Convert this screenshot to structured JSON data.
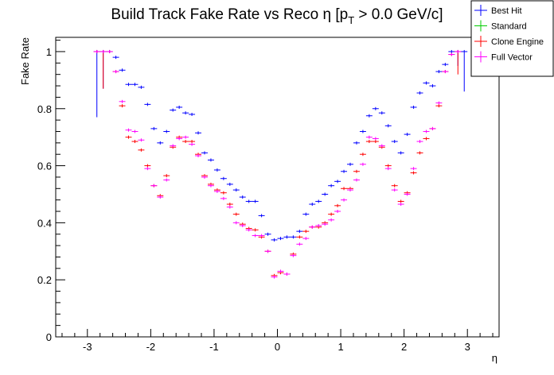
{
  "chart_data": {
    "type": "scatter",
    "title": "Build Track Fake Rate vs Reco η [p",
    "title_sub": "T",
    "title_tail": " > 0.0 GeV/c]",
    "xlabel": "η",
    "ylabel": "Fake Rate",
    "xlim": [
      -3.5,
      3.5
    ],
    "ylim": [
      0,
      1.05
    ],
    "xticks": [
      -3,
      -2,
      -1,
      0,
      1,
      2,
      3
    ],
    "xtick_labels": [
      "-3",
      "-2",
      "-1",
      "0",
      "1",
      "2",
      "3"
    ],
    "yticks": [
      0,
      0.2,
      0.4,
      0.6,
      0.8,
      1
    ],
    "ytick_labels": [
      "0",
      "0.2",
      "0.4",
      "0.6",
      "0.8",
      "1"
    ],
    "bin_half_width": 0.05,
    "legend_position": "top-right",
    "series": [
      {
        "name": "Best Hit",
        "color": "#0000ff",
        "x": [
          -2.85,
          -2.75,
          -2.65,
          -2.55,
          -2.45,
          -2.35,
          -2.25,
          -2.15,
          -2.05,
          -1.95,
          -1.85,
          -1.75,
          -1.65,
          -1.55,
          -1.45,
          -1.35,
          -1.25,
          -1.15,
          -1.05,
          -0.95,
          -0.85,
          -0.75,
          -0.65,
          -0.55,
          -0.45,
          -0.35,
          -0.25,
          -0.15,
          -0.05,
          0.05,
          0.15,
          0.25,
          0.35,
          0.45,
          0.55,
          0.65,
          0.75,
          0.85,
          0.95,
          1.05,
          1.15,
          1.25,
          1.35,
          1.45,
          1.55,
          1.65,
          1.75,
          1.85,
          1.95,
          2.05,
          2.15,
          2.25,
          2.35,
          2.45,
          2.55,
          2.65,
          2.75,
          2.85,
          2.95
        ],
        "y": [
          1.0,
          1.0,
          1.0,
          0.98,
          0.935,
          0.885,
          0.885,
          0.875,
          0.815,
          0.73,
          0.68,
          0.72,
          0.795,
          0.805,
          0.785,
          0.78,
          0.715,
          0.645,
          0.62,
          0.585,
          0.555,
          0.535,
          0.515,
          0.49,
          0.475,
          0.475,
          0.425,
          0.36,
          0.34,
          0.345,
          0.35,
          0.35,
          0.37,
          0.43,
          0.465,
          0.475,
          0.5,
          0.53,
          0.545,
          0.58,
          0.605,
          0.68,
          0.72,
          0.775,
          0.8,
          0.785,
          0.74,
          0.685,
          0.645,
          0.71,
          0.805,
          0.855,
          0.89,
          0.88,
          0.93,
          0.955,
          1.0,
          1.0,
          1.0
        ],
        "err_low": [
          0.23,
          0.13,
          0,
          0,
          0,
          0,
          0,
          0,
          0,
          0,
          0,
          0,
          0,
          0,
          0,
          0,
          0,
          0,
          0,
          0,
          0,
          0,
          0,
          0,
          0,
          0,
          0,
          0,
          0,
          0,
          0,
          0,
          0,
          0,
          0,
          0,
          0,
          0,
          0,
          0,
          0,
          0,
          0,
          0,
          0,
          0,
          0,
          0,
          0,
          0,
          0,
          0,
          0,
          0,
          0,
          0,
          0,
          0.05,
          0.14
        ]
      },
      {
        "name": "Standard",
        "color": "#00cc00",
        "x": [],
        "y": [],
        "err_low": []
      },
      {
        "name": "Clone Engine",
        "color": "#ff0000",
        "x": [
          -2.85,
          -2.75,
          -2.65,
          -2.55,
          -2.45,
          -2.35,
          -2.25,
          -2.15,
          -2.05,
          -1.95,
          -1.85,
          -1.75,
          -1.65,
          -1.55,
          -1.45,
          -1.35,
          -1.25,
          -1.15,
          -1.05,
          -0.95,
          -0.85,
          -0.75,
          -0.65,
          -0.55,
          -0.45,
          -0.35,
          -0.25,
          -0.15,
          -0.05,
          0.05,
          0.15,
          0.25,
          0.35,
          0.45,
          0.55,
          0.65,
          0.75,
          0.85,
          0.95,
          1.05,
          1.15,
          1.25,
          1.35,
          1.45,
          1.55,
          1.65,
          1.75,
          1.85,
          1.95,
          2.05,
          2.15,
          2.25,
          2.35,
          2.45,
          2.55,
          2.65,
          2.75,
          2.85
        ],
        "y": [
          1.0,
          1.0,
          1.0,
          0.93,
          0.81,
          0.7,
          0.685,
          0.655,
          0.6,
          0.53,
          0.495,
          0.565,
          0.665,
          0.7,
          0.685,
          0.685,
          0.64,
          0.565,
          0.535,
          0.515,
          0.505,
          0.465,
          0.43,
          0.395,
          0.38,
          0.375,
          0.35,
          0.3,
          0.215,
          0.225,
          0.22,
          0.29,
          0.35,
          0.37,
          0.385,
          0.385,
          0.4,
          0.43,
          0.46,
          0.52,
          0.52,
          0.58,
          0.64,
          0.685,
          0.685,
          0.665,
          0.6,
          0.53,
          0.475,
          0.505,
          0.575,
          0.645,
          0.695,
          0.73,
          0.81,
          0.93,
          0.99,
          1.0
        ],
        "err_low": [
          0,
          0.13,
          0,
          0,
          0,
          0,
          0,
          0,
          0,
          0,
          0,
          0,
          0,
          0,
          0,
          0,
          0,
          0,
          0,
          0,
          0,
          0,
          0,
          0,
          0,
          0,
          0,
          0,
          0,
          0,
          0,
          0,
          0,
          0,
          0,
          0,
          0,
          0,
          0,
          0,
          0,
          0,
          0,
          0,
          0,
          0,
          0,
          0,
          0,
          0,
          0,
          0,
          0,
          0,
          0,
          0,
          0,
          0.08
        ]
      },
      {
        "name": "Full Vector",
        "color": "#ff00ff",
        "x": [
          -2.85,
          -2.75,
          -2.65,
          -2.55,
          -2.45,
          -2.35,
          -2.25,
          -2.15,
          -2.05,
          -1.95,
          -1.85,
          -1.75,
          -1.65,
          -1.55,
          -1.45,
          -1.35,
          -1.25,
          -1.15,
          -1.05,
          -0.95,
          -0.85,
          -0.75,
          -0.65,
          -0.55,
          -0.45,
          -0.35,
          -0.25,
          -0.15,
          -0.05,
          0.05,
          0.15,
          0.25,
          0.35,
          0.45,
          0.55,
          0.65,
          0.75,
          0.85,
          0.95,
          1.05,
          1.15,
          1.25,
          1.35,
          1.45,
          1.55,
          1.65,
          1.75,
          1.85,
          1.95,
          2.05,
          2.15,
          2.25,
          2.35,
          2.45,
          2.55,
          2.65,
          2.75,
          2.85
        ],
        "y": [
          1.0,
          1.0,
          1.0,
          0.93,
          0.825,
          0.725,
          0.72,
          0.69,
          0.59,
          0.53,
          0.49,
          0.55,
          0.67,
          0.695,
          0.7,
          0.675,
          0.635,
          0.56,
          0.53,
          0.51,
          0.485,
          0.455,
          0.4,
          0.39,
          0.375,
          0.355,
          0.355,
          0.3,
          0.21,
          0.23,
          0.22,
          0.285,
          0.325,
          0.345,
          0.385,
          0.39,
          0.395,
          0.41,
          0.44,
          0.48,
          0.515,
          0.55,
          0.605,
          0.7,
          0.695,
          0.67,
          0.59,
          0.515,
          0.465,
          0.5,
          0.59,
          0.685,
          0.72,
          0.73,
          0.82,
          0.93,
          0.99,
          1.0
        ],
        "err_low": [
          0,
          0,
          0,
          0,
          0,
          0,
          0,
          0,
          0,
          0,
          0,
          0,
          0,
          0,
          0,
          0,
          0,
          0,
          0,
          0,
          0,
          0,
          0,
          0,
          0,
          0,
          0,
          0,
          0,
          0,
          0,
          0,
          0,
          0,
          0,
          0,
          0,
          0,
          0,
          0,
          0,
          0,
          0,
          0,
          0,
          0,
          0,
          0,
          0,
          0,
          0,
          0,
          0,
          0,
          0,
          0,
          0,
          0
        ]
      }
    ]
  }
}
